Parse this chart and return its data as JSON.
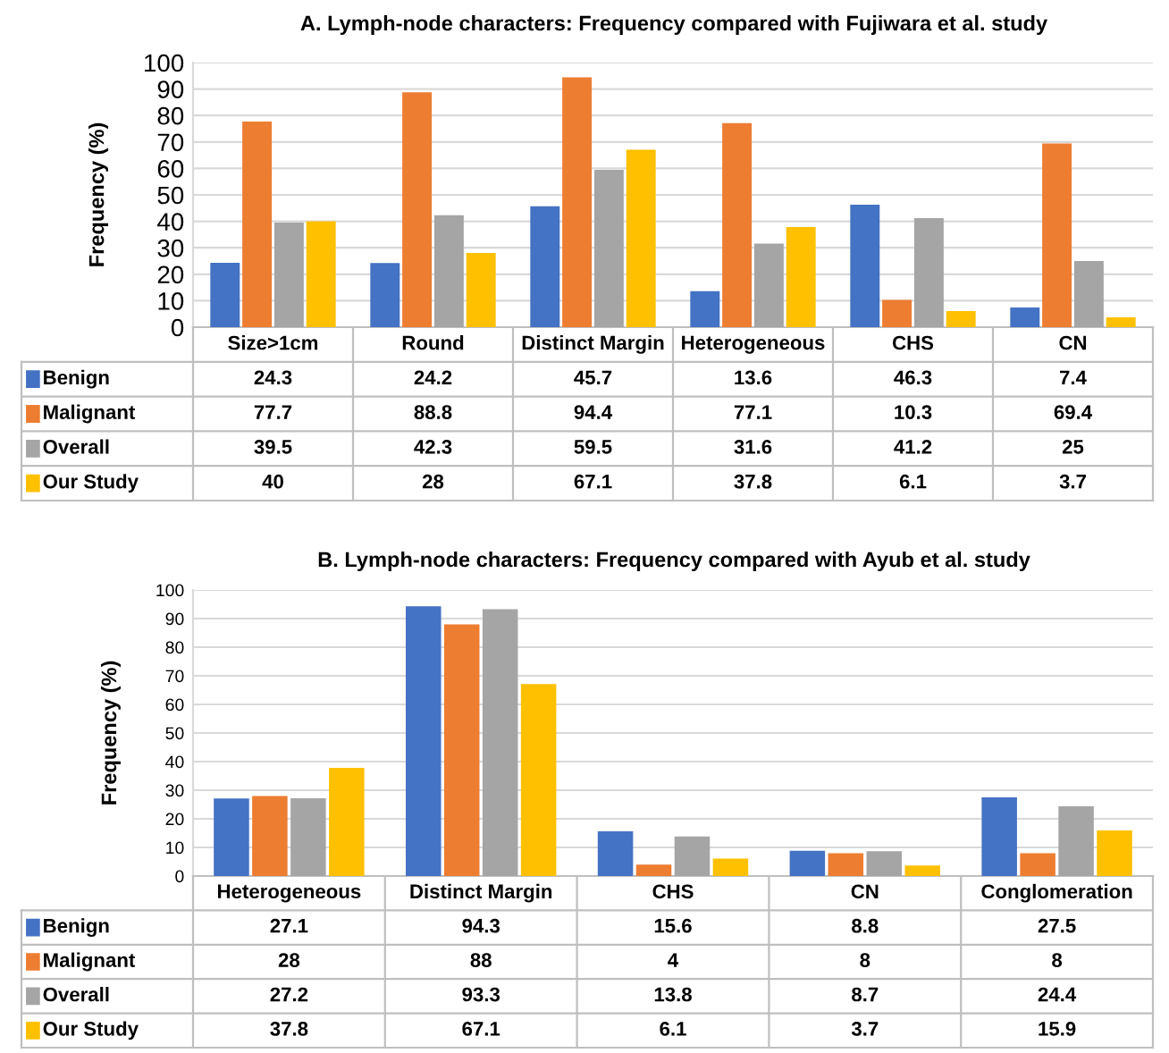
{
  "chart_data": [
    {
      "type": "bar",
      "title": "A. Lymph-node characters: Frequency compared with Fujiwara et al. study",
      "ylabel": "Frequency (%)",
      "categories": [
        "Size>1cm",
        "Round",
        "Distinct Margin",
        "Heterogeneous",
        "CHS",
        "CN"
      ],
      "series": [
        {
          "name": "Benign",
          "color": "#4472c4",
          "values": [
            24.3,
            24.2,
            45.7,
            13.6,
            46.3,
            7.4
          ]
        },
        {
          "name": "Malignant",
          "color": "#ed7d31",
          "values": [
            77.7,
            88.8,
            94.4,
            77.1,
            10.3,
            69.4
          ]
        },
        {
          "name": "Overall",
          "color": "#a5a5a5",
          "values": [
            39.5,
            42.3,
            59.5,
            31.6,
            41.2,
            25
          ]
        },
        {
          "name": "Our Study",
          "color": "#ffc000",
          "values": [
            40,
            28,
            67.1,
            37.8,
            6.1,
            3.7
          ]
        }
      ],
      "ylim": [
        0,
        100
      ],
      "yticks": [
        0,
        10,
        20,
        30,
        40,
        50,
        60,
        70,
        80,
        90,
        100
      ],
      "grid": "y",
      "legend": "bottom",
      "data_labels": true
    },
    {
      "type": "bar",
      "title": "B. Lymph-node characters: Frequency compared with Ayub et al. study",
      "ylabel": "Frequency (%)",
      "categories": [
        "Heterogeneous",
        "Distinct Margin",
        "CHS",
        "CN",
        "Conglomeration"
      ],
      "series": [
        {
          "name": "Benign",
          "color": "#4472c4",
          "values": [
            27.1,
            94.3,
            15.6,
            8.8,
            27.5
          ]
        },
        {
          "name": "Malignant",
          "color": "#ed7d31",
          "values": [
            28,
            88,
            4,
            8,
            8
          ]
        },
        {
          "name": "Overall",
          "color": "#a5a5a5",
          "values": [
            27.2,
            93.3,
            13.8,
            8.7,
            24.4
          ]
        },
        {
          "name": "Our Study",
          "color": "#ffc000",
          "values": [
            37.8,
            67.1,
            6.1,
            3.7,
            15.9
          ]
        }
      ],
      "ylim": [
        0,
        100
      ],
      "yticks": [
        0,
        10,
        20,
        30,
        40,
        50,
        60,
        70,
        80,
        90,
        100
      ],
      "grid": "y",
      "legend": "bottom",
      "data_labels": true
    }
  ]
}
